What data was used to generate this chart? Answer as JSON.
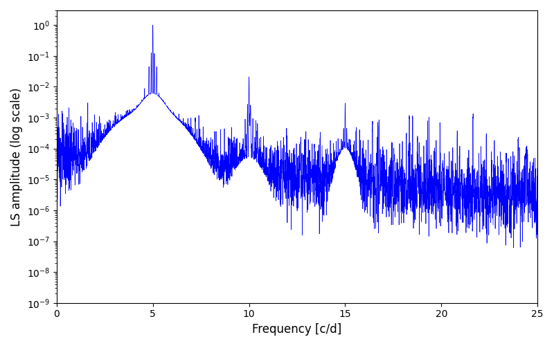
{
  "xlabel": "Frequency [c/d]",
  "ylabel": "LS amplitude (log scale)",
  "line_color": "#0000ff",
  "xlim": [
    0,
    25
  ],
  "ylim": [
    1e-09,
    3.0
  ],
  "figsize": [
    8.0,
    5.0
  ],
  "dpi": 100,
  "background_color": "#ffffff",
  "seed": 123,
  "n_points": 4000,
  "noise_mean_log": -4.2,
  "noise_std_log": 0.6,
  "peak1_freq": 5.0,
  "peak1_amp": 1.0,
  "peak2_freq": 10.0,
  "peak2_amp": 0.022,
  "peak3_freq": 15.0,
  "peak3_amp": 0.003,
  "linewidth": 0.5
}
